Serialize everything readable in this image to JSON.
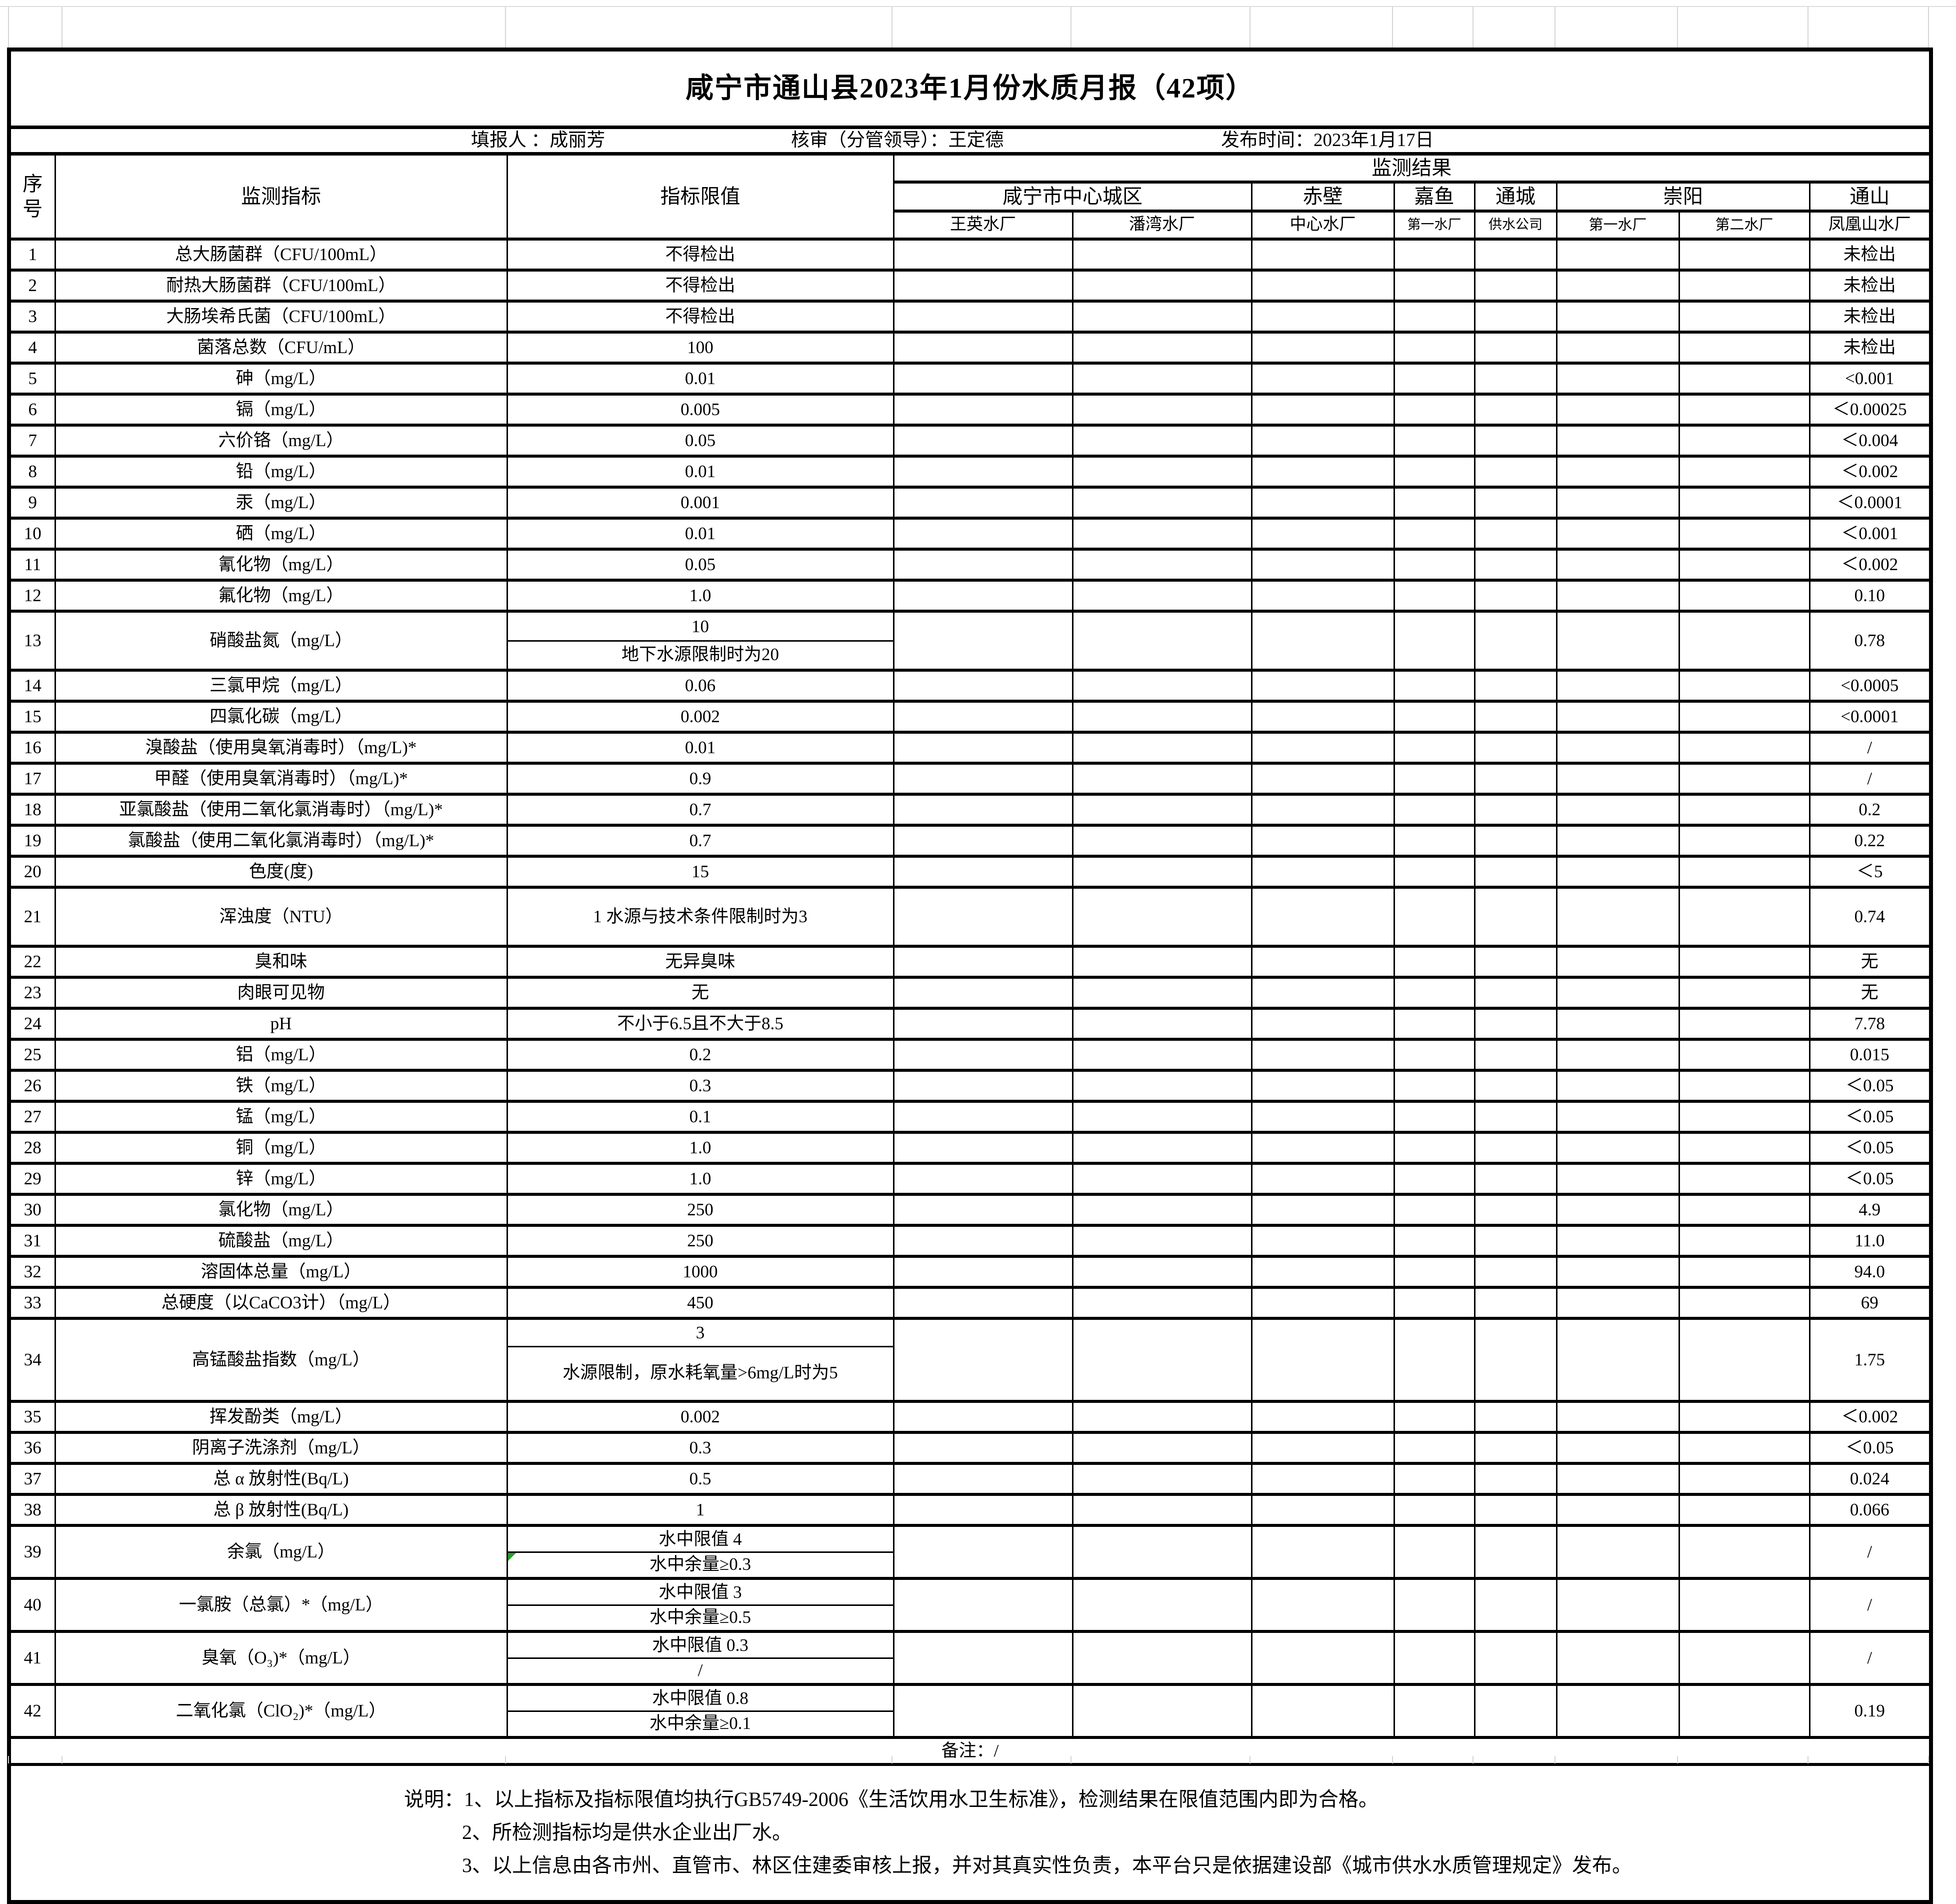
{
  "page": {
    "title": "咸宁市通山县2023年1月份水质月报（42项）",
    "meta": {
      "filler": "填报人 ：成丽芳",
      "reviewer": "核审（分管领导）：王定德",
      "publish_time": "发布时间：2023年1月17日"
    }
  },
  "table": {
    "headers": {
      "no": "序号",
      "indicator": "监测指标",
      "limit": "指标限值",
      "results": "监测结果"
    },
    "regions": [
      {
        "name": "咸宁市中心城区",
        "plants": [
          "王英水厂",
          "潘湾水厂"
        ]
      },
      {
        "name": "赤壁",
        "plants": [
          "中心水厂"
        ]
      },
      {
        "name": "嘉鱼",
        "plants": [
          "第一水厂"
        ]
      },
      {
        "name": "通城",
        "plants": [
          "供水公司"
        ]
      },
      {
        "name": "崇阳",
        "plants": [
          "第一水厂",
          "第二水厂"
        ]
      },
      {
        "name": "通山",
        "plants": [
          "凤凰山水厂"
        ]
      }
    ],
    "rows": [
      {
        "no": "1",
        "indicator": "总大肠菌群（CFU/100mL）",
        "limit": "不得检出",
        "result": "未检出"
      },
      {
        "no": "2",
        "indicator": "耐热大肠菌群（CFU/100mL）",
        "limit": "不得检出",
        "result": "未检出"
      },
      {
        "no": "3",
        "indicator": "大肠埃希氏菌（CFU/100mL）",
        "limit": "不得检出",
        "result": "未检出"
      },
      {
        "no": "4",
        "indicator": "菌落总数（CFU/mL）",
        "limit": "100",
        "result": "未检出"
      },
      {
        "no": "5",
        "indicator": "砷（mg/L）",
        "limit": "0.01",
        "result": "<0.001"
      },
      {
        "no": "6",
        "indicator": "镉（mg/L）",
        "limit": "0.005",
        "result": "＜0.00025"
      },
      {
        "no": "7",
        "indicator": "六价铬（mg/L）",
        "limit": "0.05",
        "result": "＜0.004"
      },
      {
        "no": "8",
        "indicator": "铅（mg/L）",
        "limit": "0.01",
        "result": "＜0.002"
      },
      {
        "no": "9",
        "indicator": "汞（mg/L）",
        "limit": "0.001",
        "result": "＜0.0001"
      },
      {
        "no": "10",
        "indicator": "硒（mg/L）",
        "limit": "0.01",
        "result": "＜0.001"
      },
      {
        "no": "11",
        "indicator": "氰化物（mg/L）",
        "limit": "0.05",
        "result": "＜0.002"
      },
      {
        "no": "12",
        "indicator": "氟化物（mg/L）",
        "limit": "1.0",
        "result": "0.10"
      },
      {
        "no": "13",
        "indicator": "硝酸盐氮（mg/L）",
        "limit_top": "10",
        "limit_bottom": "地下水源限制时为20",
        "result": "0.78"
      },
      {
        "no": "14",
        "indicator": "三氯甲烷（mg/L）",
        "limit": "0.06",
        "result": "<0.0005"
      },
      {
        "no": "15",
        "indicator": "四氯化碳（mg/L）",
        "limit": "0.002",
        "result": "<0.0001"
      },
      {
        "no": "16",
        "indicator": "溴酸盐（使用臭氧消毒时）（mg/L)*",
        "limit": "0.01",
        "result": "/"
      },
      {
        "no": "17",
        "indicator": "甲醛（使用臭氧消毒时）（mg/L)*",
        "limit": "0.9",
        "result": "/"
      },
      {
        "no": "18",
        "indicator": "亚氯酸盐（使用二氧化氯消毒时）（mg/L)*",
        "limit": "0.7",
        "result": "0.2"
      },
      {
        "no": "19",
        "indicator": "氯酸盐（使用二氧化氯消毒时）（mg/L)*",
        "limit": "0.7",
        "result": "0.22"
      },
      {
        "no": "20",
        "indicator": "色度(度)",
        "limit": "15",
        "result": "＜5"
      },
      {
        "no": "21",
        "indicator": "浑浊度（NTU）",
        "limit": "1  水源与技术条件限制时为3",
        "result": "0.74"
      },
      {
        "no": "22",
        "indicator": "臭和味",
        "limit": "无异臭味",
        "result": "无"
      },
      {
        "no": "23",
        "indicator": "肉眼可见物",
        "limit": "无",
        "result": "无"
      },
      {
        "no": "24",
        "indicator": "pH",
        "limit": "不小于6.5且不大于8.5",
        "result": "7.78"
      },
      {
        "no": "25",
        "indicator": "铝（mg/L）",
        "limit": "0.2",
        "result": "0.015"
      },
      {
        "no": "26",
        "indicator": "铁（mg/L）",
        "limit": "0.3",
        "result": "＜0.05"
      },
      {
        "no": "27",
        "indicator": "锰（mg/L）",
        "limit": "0.1",
        "result": "＜0.05"
      },
      {
        "no": "28",
        "indicator": "铜（mg/L）",
        "limit": "1.0",
        "result": "＜0.05"
      },
      {
        "no": "29",
        "indicator": "锌（mg/L）",
        "limit": "1.0",
        "result": "＜0.05"
      },
      {
        "no": "30",
        "indicator": "氯化物（mg/L）",
        "limit": "250",
        "result": "4.9"
      },
      {
        "no": "31",
        "indicator": "硫酸盐（mg/L）",
        "limit": "250",
        "result": "11.0"
      },
      {
        "no": "32",
        "indicator": "溶固体总量（mg/L）",
        "limit": "1000",
        "result": "94.0"
      },
      {
        "no": "33",
        "indicator": "总硬度（以CaCO3计）（mg/L）",
        "limit": "450",
        "result": "69"
      },
      {
        "no": "34",
        "indicator": "高锰酸盐指数（mg/L）",
        "limit_top": "3",
        "limit_bottom": "水源限制，原水耗氧量>6mg/L时为5",
        "result": "1.75"
      },
      {
        "no": "35",
        "indicator": "挥发酚类（mg/L）",
        "limit": "0.002",
        "result": "＜0.002"
      },
      {
        "no": "36",
        "indicator": "阴离子洗涤剂（mg/L）",
        "limit": "0.3",
        "result": "＜0.05"
      },
      {
        "no": "37",
        "indicator": "总 α 放射性(Bq/L)",
        "limit": "0.5",
        "result": "0.024"
      },
      {
        "no": "38",
        "indicator": "总 β 放射性(Bq/L)",
        "limit": "1",
        "result": "0.066"
      },
      {
        "no": "39",
        "indicator": "余氯（mg/L）",
        "limit_top": "水中限值 4",
        "limit_bottom": "水中余量≥0.3",
        "marker": true,
        "result": "/"
      },
      {
        "no": "40",
        "indicator": "一氯胺（总氯）*（mg/L）",
        "limit_top": "水中限值 3",
        "limit_bottom": "水中余量≥0.5",
        "result": "/"
      },
      {
        "no": "41",
        "indicator": "臭氧（O₃)*（mg/L）",
        "limit_top": "水中限值 0.3",
        "limit_bottom": "/",
        "result": "/"
      },
      {
        "no": "42",
        "indicator": "二氧化氯（ClO₂)*（mg/L）",
        "limit_top": "水中限值 0.8",
        "limit_bottom": "水中余量≥0.1",
        "result": "0.19"
      }
    ],
    "remark": "备注：/"
  },
  "notes": {
    "line1": "说明：1、以上指标及指标限值均执行GB5749-2006《生活饮用水卫生标准》，检测结果在限值范围内即为合格。",
    "line2": "2、所检测指标均是供水企业出厂水。",
    "line3": "3、以上信息由各市州、直管市、林区住建委审核上报，并对其真实性负责，本平台只是依据建设部《城市供水水质管理规定》发布。"
  },
  "colors": {
    "border": "#000000",
    "gridline_gray": "#d6d6d6",
    "comment_marker_green": "#1ea41e"
  }
}
